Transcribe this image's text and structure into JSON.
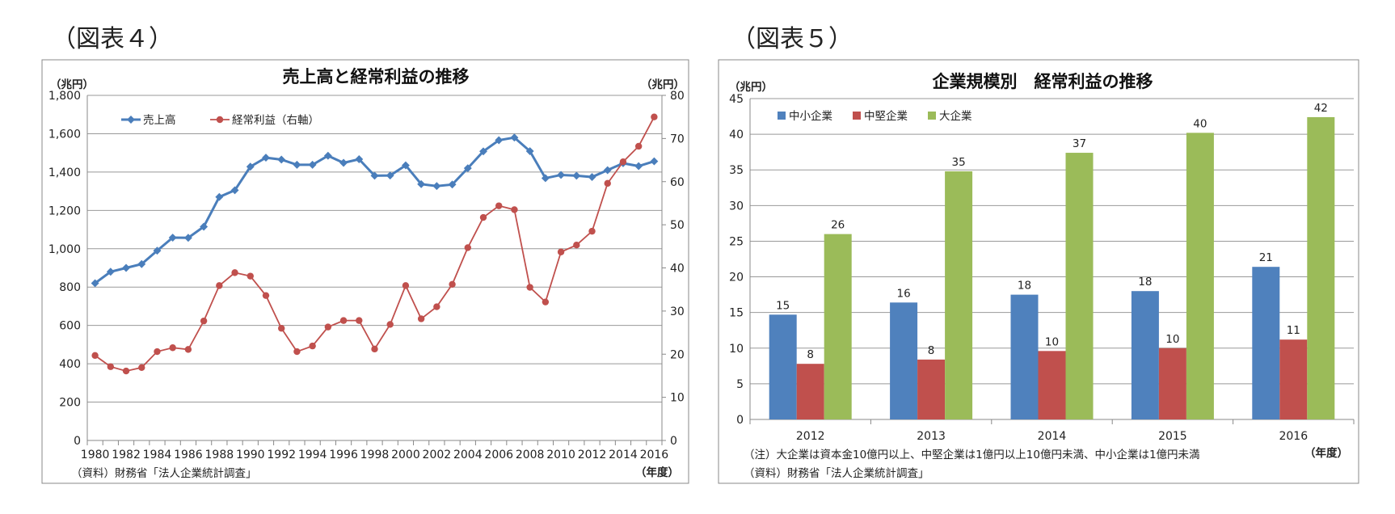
{
  "figures": {
    "left_label": "（図表４）",
    "right_label": "（図表５）"
  },
  "chart_data": [
    {
      "type": "line",
      "title": "売上高と経常利益の推移",
      "ylabel_left_unit": "（兆円）",
      "ylabel_right_unit": "（兆円）",
      "xlabel_unit": "（年度）",
      "source": "（資料）財務省「法人企業統計調査」",
      "x": [
        1980,
        1981,
        1982,
        1983,
        1984,
        1985,
        1986,
        1987,
        1988,
        1989,
        1990,
        1991,
        1992,
        1993,
        1994,
        1995,
        1996,
        1997,
        1998,
        1999,
        2000,
        2001,
        2002,
        2003,
        2004,
        2005,
        2006,
        2007,
        2008,
        2009,
        2010,
        2011,
        2012,
        2013,
        2014,
        2015,
        2016
      ],
      "x_tick_labels": [
        "1980",
        "1982",
        "1984",
        "1986",
        "1988",
        "1990",
        "1992",
        "1994",
        "1996",
        "1998",
        "2000",
        "2002",
        "2004",
        "2006",
        "2008",
        "2010",
        "2012",
        "2014",
        "2016"
      ],
      "ylim_left": [
        0,
        1800
      ],
      "y_ticks_left": [
        "0",
        "200",
        "400",
        "600",
        "800",
        "1,000",
        "1,200",
        "1,400",
        "1,600",
        "1,800"
      ],
      "ylim_right": [
        0,
        80
      ],
      "y_ticks_right": [
        "0",
        "10",
        "20",
        "30",
        "40",
        "50",
        "60",
        "70",
        "80"
      ],
      "grid": true,
      "legend": "top-left",
      "series": [
        {
          "name": "売上高",
          "axis": "left",
          "color": "#4a7ebb",
          "values": [
            820,
            880,
            900,
            920,
            990,
            1058,
            1057,
            1115,
            1270,
            1305,
            1428,
            1475,
            1465,
            1438,
            1438,
            1485,
            1448,
            1467,
            1381,
            1382,
            1435,
            1337,
            1327,
            1335,
            1420,
            1508,
            1566,
            1580,
            1509,
            1368,
            1385,
            1381,
            1374,
            1410,
            1446,
            1431,
            1456
          ]
        },
        {
          "name": "経常利益（右軸）",
          "axis": "right",
          "color": "#c0504d",
          "values": [
            19.7,
            17.1,
            16.1,
            16.9,
            20.6,
            21.5,
            21.1,
            27.7,
            35.9,
            38.9,
            38.1,
            33.6,
            26.0,
            20.6,
            21.9,
            26.3,
            27.8,
            27.8,
            21.2,
            26.9,
            35.9,
            28.2,
            31.0,
            36.2,
            44.7,
            51.7,
            54.4,
            53.5,
            35.5,
            32.1,
            43.7,
            45.3,
            48.5,
            59.6,
            64.6,
            68.2,
            75.0
          ]
        }
      ]
    },
    {
      "type": "bar",
      "title": "企業規模別　経常利益の推移",
      "ylabel_unit": "（兆円）",
      "xlabel_unit": "（年度）",
      "note": "（注）大企業は資本金10億円以上、中堅企業は1億円以上10億円未満、中小企業は1億円未満",
      "source": "（資料）財務省「法人企業統計調査」",
      "categories": [
        "2012",
        "2013",
        "2014",
        "2015",
        "2016"
      ],
      "ylim": [
        0,
        45
      ],
      "y_ticks": [
        "0",
        "5",
        "10",
        "15",
        "20",
        "25",
        "30",
        "35",
        "40",
        "45"
      ],
      "grid": true,
      "legend": "top-left",
      "series": [
        {
          "name": "中小企業",
          "color": "#4f81bd",
          "values": [
            14.7,
            16.4,
            17.5,
            18.0,
            21.4
          ],
          "labels": [
            "15",
            "16",
            "18",
            "18",
            "21"
          ]
        },
        {
          "name": "中堅企業",
          "color": "#c0504d",
          "values": [
            7.8,
            8.4,
            9.6,
            10.0,
            11.2
          ],
          "labels": [
            "8",
            "8",
            "10",
            "10",
            "11"
          ]
        },
        {
          "name": "大企業",
          "color": "#9bbb59",
          "values": [
            26.0,
            34.8,
            37.4,
            40.2,
            42.4
          ],
          "labels": [
            "26",
            "35",
            "37",
            "40",
            "42"
          ]
        }
      ]
    }
  ]
}
